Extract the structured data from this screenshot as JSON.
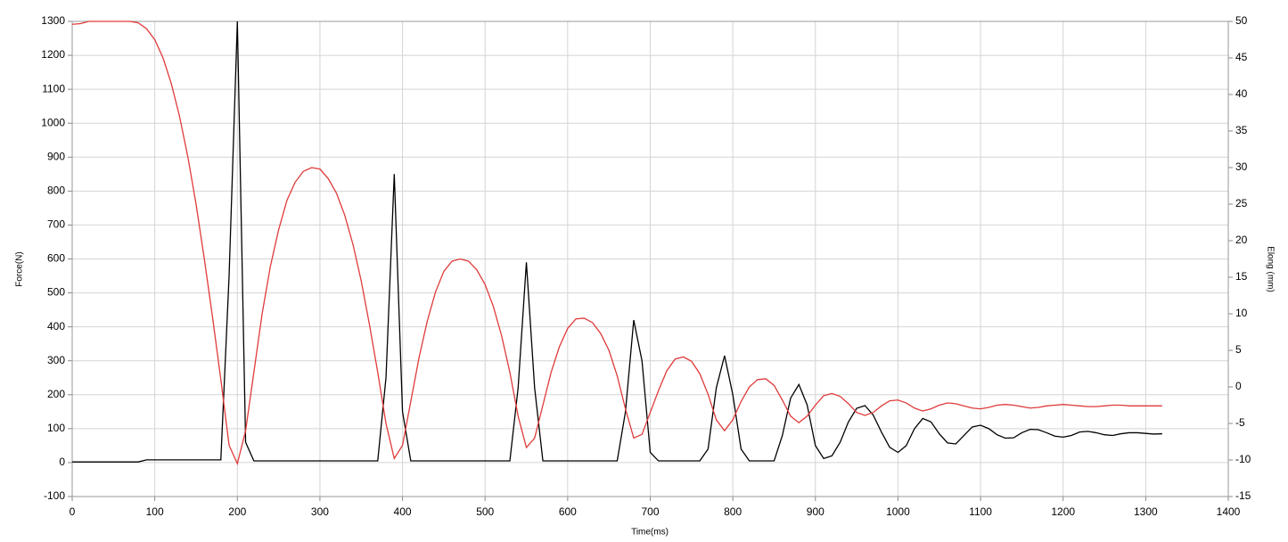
{
  "chart_data": {
    "type": "line",
    "xlabel": "Time(ms)",
    "ylabel": "Force(N)",
    "y2label": "Elong (mm)",
    "x": [
      0,
      10,
      20,
      30,
      40,
      50,
      60,
      70,
      80,
      90,
      100,
      110,
      120,
      130,
      140,
      150,
      160,
      170,
      180,
      190,
      200,
      210,
      220,
      230,
      240,
      250,
      260,
      270,
      280,
      290,
      300,
      310,
      320,
      330,
      340,
      350,
      360,
      370,
      380,
      390,
      400,
      410,
      420,
      430,
      440,
      450,
      460,
      470,
      480,
      490,
      500,
      510,
      520,
      530,
      540,
      550,
      560,
      570,
      580,
      590,
      600,
      610,
      620,
      630,
      640,
      650,
      660,
      670,
      680,
      690,
      700,
      710,
      720,
      730,
      740,
      750,
      760,
      770,
      780,
      790,
      800,
      810,
      820,
      830,
      840,
      850,
      860,
      870,
      880,
      890,
      900,
      910,
      920,
      930,
      940,
      950,
      960,
      970,
      980,
      990,
      1000,
      1010,
      1020,
      1030,
      1040,
      1050,
      1060,
      1070,
      1080,
      1090,
      1100,
      1110,
      1120,
      1130,
      1140,
      1150,
      1160,
      1170,
      1180,
      1190,
      1200,
      1210,
      1220,
      1230,
      1240,
      1250,
      1260,
      1270,
      1280,
      1290,
      1300,
      1310,
      1320
    ],
    "series": [
      {
        "color": "#000000",
        "values": [
          2,
          2,
          2,
          2,
          2,
          2,
          2,
          2,
          2,
          8,
          8,
          8,
          8,
          8,
          8,
          8,
          8,
          8,
          8,
          550,
          1300,
          60,
          5,
          5,
          5,
          5,
          5,
          5,
          5,
          5,
          5,
          5,
          5,
          5,
          5,
          5,
          5,
          5,
          250,
          850,
          150,
          5,
          5,
          5,
          5,
          5,
          5,
          5,
          5,
          5,
          5,
          5,
          5,
          5,
          220,
          590,
          220,
          5,
          5,
          5,
          5,
          5,
          5,
          5,
          5,
          5,
          5,
          150,
          420,
          300,
          30,
          5,
          5,
          5,
          5,
          5,
          5,
          40,
          220,
          315,
          200,
          40,
          5,
          5,
          5,
          5,
          80,
          190,
          230,
          170,
          50,
          12,
          20,
          60,
          120,
          160,
          168,
          140,
          90,
          45,
          30,
          50,
          100,
          130,
          120,
          85,
          58,
          55,
          80,
          105,
          110,
          100,
          82,
          72,
          73,
          88,
          98,
          97,
          88,
          78,
          75,
          80,
          90,
          92,
          88,
          82,
          80,
          85,
          88,
          88,
          86,
          84,
          85
        ]
      },
      {
        "color": "#e03a3a",
        "axis": "y2",
        "values": [
          49.6,
          49.7,
          50,
          50,
          50,
          50,
          50,
          50,
          49.8,
          49,
          47.5,
          45,
          41.5,
          37,
          31.5,
          25,
          17.5,
          9.5,
          1,
          -8,
          -10.5,
          -6,
          2,
          10,
          16.5,
          21.5,
          25.5,
          28,
          29.5,
          30,
          29.8,
          28.5,
          26.5,
          23.5,
          19.5,
          14.5,
          8.5,
          2,
          -5,
          -9.8,
          -8,
          -2,
          4,
          9,
          13,
          15.8,
          17.2,
          17.5,
          17.2,
          16,
          14,
          11,
          7,
          2,
          -4,
          -8.3,
          -7,
          -2.5,
          2,
          5.5,
          8,
          9.3,
          9.4,
          8.8,
          7.3,
          5,
          1.5,
          -3,
          -7,
          -6.5,
          -3.5,
          -0.5,
          2.2,
          3.8,
          4.1,
          3.5,
          1.8,
          -1,
          -4.5,
          -6,
          -4.5,
          -2,
          0,
          1,
          1.1,
          0.2,
          -1.8,
          -4,
          -4.9,
          -4,
          -2.5,
          -1.2,
          -0.9,
          -1.3,
          -2.3,
          -3.5,
          -3.9,
          -3.5,
          -2.6,
          -1.9,
          -1.8,
          -2.2,
          -2.9,
          -3.3,
          -3,
          -2.5,
          -2.2,
          -2.3,
          -2.6,
          -2.9,
          -3,
          -2.8,
          -2.5,
          -2.4,
          -2.5,
          -2.7,
          -2.9,
          -2.8,
          -2.6,
          -2.5,
          -2.4,
          -2.5,
          -2.6,
          -2.7,
          -2.7,
          -2.6,
          -2.5,
          -2.5,
          -2.6,
          -2.6,
          -2.6,
          -2.6,
          -2.6
        ]
      }
    ],
    "xlim": [
      0,
      1400
    ],
    "xticks": [
      0,
      100,
      200,
      300,
      400,
      500,
      600,
      700,
      800,
      900,
      1000,
      1100,
      1200,
      1300,
      1400
    ],
    "ylim": [
      -100,
      1300
    ],
    "yticks": [
      -100,
      0,
      100,
      200,
      300,
      400,
      500,
      600,
      700,
      800,
      900,
      1000,
      1100,
      1200,
      1300
    ],
    "y2lim": [
      -15,
      50
    ],
    "y2ticks": [
      -15,
      -10,
      -5,
      0,
      5,
      10,
      15,
      20,
      25,
      30,
      35,
      40,
      45,
      50
    ],
    "grid": true
  }
}
